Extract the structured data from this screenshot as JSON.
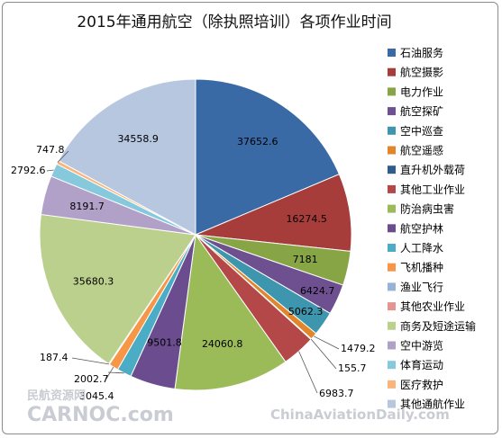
{
  "chart_data": {
    "type": "pie",
    "title": "2015年通用航空（除执照培训）各项作业时间",
    "categories": [
      "石油服务",
      "航空摄影",
      "电力作业",
      "航空探矿",
      "空中巡查",
      "航空遥感",
      "直升机外载荷",
      "其他工业作业",
      "防治病虫害",
      "航空护林",
      "人工降水",
      "飞机播种",
      "渔业飞行",
      "其他农业作业",
      "商务及短途运输",
      "空中游览",
      "体育运动",
      "医疗救护",
      "其他通航作业"
    ],
    "values": [
      37652.6,
      16274.5,
      7181,
      6424.7,
      5062.3,
      1479.2,
      155.7,
      6983.7,
      24060.8,
      9501.8,
      3045.4,
      2002.7,
      187.4,
      0,
      35680.3,
      8191.7,
      2792.6,
      747.8,
      34558.9
    ],
    "value_labels": [
      "37652.6",
      "16274.5",
      "7181",
      "6424.7",
      "5062.3",
      "1479.2",
      "155.7",
      "6983.7",
      "24060.8",
      "9501.8",
      "3045.4",
      "2002.7",
      "187.4",
      "",
      "35680.3",
      "8191.7",
      "2792.6",
      "747.8",
      "34558.9"
    ],
    "colors": [
      "#3a6aa5",
      "#a63d3b",
      "#88a545",
      "#6e5091",
      "#3d96ae",
      "#e2862b",
      "#2f5b8f",
      "#b44848",
      "#9bbb59",
      "#6b4d8f",
      "#4bacc6",
      "#f79646",
      "#95b3d7",
      "#e49592",
      "#bcd08e",
      "#b1a0c7",
      "#86c8dc",
      "#fab67a",
      "#b8c7e0"
    ],
    "legend_position": "right"
  },
  "watermarks": {
    "left_top": "民航资源网",
    "left_bottom": "CARNOC.com",
    "right": "ChinaAviationDaily.com"
  }
}
